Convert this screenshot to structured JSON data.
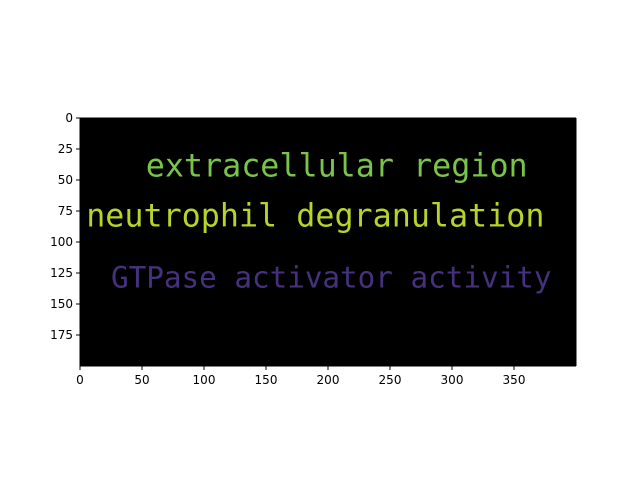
{
  "image": {
    "background": "#000000",
    "width_units": 400,
    "height_units": 200,
    "words": [
      {
        "text": "extracellular region",
        "color": "#7ac44a",
        "x": 53,
        "y": 40,
        "size": 26
      },
      {
        "text": "neutrophil degranulation",
        "color": "#b9d32a",
        "x": 5,
        "y": 80,
        "size": 26
      },
      {
        "text": "GTPase activator activity",
        "color": "#46317e",
        "x": 25,
        "y": 130,
        "size": 24
      }
    ]
  },
  "axes": {
    "x_ticks": [
      0,
      50,
      100,
      150,
      200,
      250,
      300,
      350
    ],
    "y_ticks": [
      0,
      25,
      50,
      75,
      100,
      125,
      150,
      175
    ]
  }
}
